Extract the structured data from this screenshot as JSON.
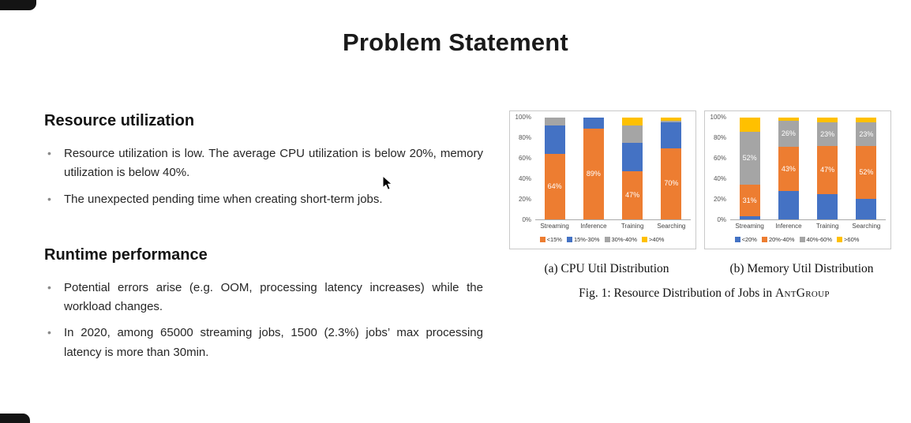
{
  "slide": {
    "title": "Problem Statement",
    "bullet_glyph": "•"
  },
  "sections": [
    {
      "heading": "Resource utilization",
      "bullets": [
        "Resource utilization is low. The average CPU utilization is below 20%, memory utilization is below 40%.",
        "The unexpected pending time when creating short-term jobs."
      ]
    },
    {
      "heading": "Runtime performance",
      "bullets": [
        "Potential errors arise (e.g. OOM, processing latency increases) while the workload changes.",
        "In 2020, among 65000 streaming jobs, 1500 (2.3%) jobs’ max processing latency is more than 30min."
      ]
    }
  ],
  "figure": {
    "fig_caption_prefix": "Fig. 1: Resource Distribution of Jobs in ",
    "fig_caption_org": "AntGroup"
  },
  "chart_data": [
    {
      "type": "bar",
      "stacked": true,
      "title": "(a) CPU Util Distribution",
      "categories": [
        "Streaming",
        "Inference",
        "Training",
        "Searching"
      ],
      "yticks": [
        "0%",
        "20%",
        "40%",
        "60%",
        "80%",
        "100%"
      ],
      "ylim": [
        0,
        100
      ],
      "legend_position": "bottom",
      "series": [
        {
          "name": "<15%",
          "color": "#ED7D31",
          "values": [
            64,
            89,
            47,
            70
          ],
          "labels": [
            "64%",
            "89%",
            "47%",
            "70%"
          ]
        },
        {
          "name": "15%-30%",
          "color": "#4472C4",
          "values": [
            28,
            11,
            28,
            25
          ],
          "labels": [
            "",
            "",
            "",
            ""
          ]
        },
        {
          "name": "30%-40%",
          "color": "#A5A5A5",
          "values": [
            8,
            0,
            17,
            2
          ],
          "labels": [
            "",
            "",
            "",
            ""
          ]
        },
        {
          "name": ">40%",
          "color": "#FFC000",
          "values": [
            0,
            0,
            8,
            3
          ],
          "labels": [
            "",
            "",
            "",
            ""
          ]
        }
      ]
    },
    {
      "type": "bar",
      "stacked": true,
      "title": "(b) Memory Util Distribution",
      "categories": [
        "Streaming",
        "Inference",
        "Training",
        "Searching"
      ],
      "yticks": [
        "0%",
        "20%",
        "40%",
        "60%",
        "80%",
        "100%"
      ],
      "ylim": [
        0,
        100
      ],
      "legend_position": "bottom",
      "series": [
        {
          "name": "<20%",
          "color": "#4472C4",
          "values": [
            3,
            28,
            25,
            20
          ],
          "labels": [
            "",
            "",
            "",
            ""
          ]
        },
        {
          "name": "20%-40%",
          "color": "#ED7D31",
          "values": [
            31,
            43,
            47,
            52
          ],
          "labels": [
            "31%",
            "43%",
            "47%",
            "52%"
          ]
        },
        {
          "name": "40%-60%",
          "color": "#A5A5A5",
          "values": [
            52,
            26,
            23,
            23
          ],
          "labels": [
            "52%",
            "26%",
            "23%",
            "23%"
          ]
        },
        {
          "name": ">60%",
          "color": "#FFC000",
          "values": [
            14,
            3,
            5,
            5
          ],
          "labels": [
            "",
            "",
            "",
            ""
          ]
        }
      ]
    }
  ]
}
